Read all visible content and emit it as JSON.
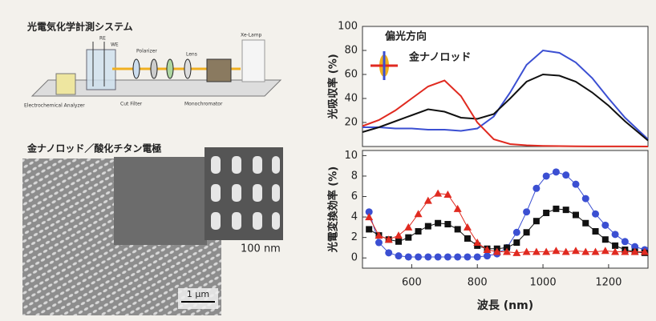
{
  "diagram": {
    "title": "光電気化学計測システム",
    "labels": {
      "re": "RE",
      "we": "WE",
      "polarizer": "Polarizer",
      "lens": "Lens",
      "lamp": "Xe-Lamp",
      "analyzer": "Electrochemical Analyzer",
      "filter": "Cut Filter",
      "mono": "Monochromator"
    }
  },
  "sem": {
    "title": "金ナノロッド／酸化チタン電極",
    "scale_inset": "100 nm",
    "scale_main": "1 μm"
  },
  "chart_data": [
    {
      "type": "line",
      "ylabel": "光吸収率 (%)",
      "annotations": [
        "偏光方向",
        "金ナノロッド"
      ],
      "xlim": [
        450,
        1320
      ],
      "ylim": [
        0,
        100
      ],
      "yticks": [
        20,
        40,
        60,
        80,
        100
      ],
      "x": [
        450,
        500,
        550,
        600,
        650,
        700,
        750,
        800,
        850,
        900,
        950,
        1000,
        1050,
        1100,
        1150,
        1200,
        1250,
        1320
      ],
      "series": [
        {
          "name": "blue",
          "color": "#3b4fd2",
          "values": [
            16,
            16,
            15,
            15,
            14,
            14,
            13,
            15,
            25,
            45,
            68,
            80,
            78,
            70,
            57,
            40,
            24,
            6
          ]
        },
        {
          "name": "black",
          "color": "#111111",
          "values": [
            12,
            16,
            21,
            26,
            31,
            29,
            24,
            23,
            27,
            40,
            54,
            60,
            59,
            54,
            45,
            34,
            21,
            5
          ]
        },
        {
          "name": "red",
          "color": "#e02a20",
          "values": [
            17,
            22,
            30,
            40,
            50,
            55,
            42,
            20,
            6,
            2,
            1,
            0.5,
            0.3,
            0.2,
            0.1,
            0.1,
            0.1,
            0
          ]
        }
      ]
    },
    {
      "type": "scatter",
      "ylabel": "光電変換効率 (%)",
      "xlabel": "波長 (nm)",
      "xlim": [
        450,
        1320
      ],
      "ylim": [
        -1,
        10.5
      ],
      "xticks": [
        600,
        800,
        1000,
        1200
      ],
      "yticks": [
        0,
        2,
        4,
        6,
        8,
        10
      ],
      "x": [
        470,
        500,
        530,
        560,
        590,
        620,
        650,
        680,
        710,
        740,
        770,
        800,
        830,
        860,
        890,
        920,
        950,
        980,
        1010,
        1040,
        1070,
        1100,
        1130,
        1160,
        1190,
        1220,
        1250,
        1280,
        1310
      ],
      "series": [
        {
          "name": "blue",
          "color": "#3b4fd2",
          "marker": "circle",
          "values": [
            4.5,
            1.5,
            0.5,
            0.2,
            0.1,
            0.1,
            0.1,
            0.1,
            0.1,
            0.1,
            0.1,
            0.1,
            0.2,
            0.4,
            1.0,
            2.5,
            4.5,
            6.8,
            8.0,
            8.4,
            8.1,
            7.2,
            5.8,
            4.3,
            3.2,
            2.3,
            1.6,
            1.1,
            0.8
          ]
        },
        {
          "name": "black",
          "color": "#111111",
          "marker": "square",
          "values": [
            2.8,
            2.2,
            1.8,
            1.6,
            2.0,
            2.6,
            3.1,
            3.4,
            3.3,
            2.8,
            1.9,
            1.2,
            0.9,
            0.9,
            1.0,
            1.5,
            2.5,
            3.6,
            4.4,
            4.8,
            4.7,
            4.2,
            3.4,
            2.6,
            1.8,
            1.2,
            0.8,
            0.6,
            0.5
          ]
        },
        {
          "name": "red",
          "color": "#e02a20",
          "marker": "triangle",
          "values": [
            4.0,
            2.2,
            1.8,
            2.2,
            3.0,
            4.3,
            5.6,
            6.3,
            6.2,
            4.8,
            3.0,
            1.5,
            0.8,
            0.6,
            0.6,
            0.5,
            0.6,
            0.6,
            0.6,
            0.7,
            0.6,
            0.7,
            0.6,
            0.6,
            0.7,
            0.6,
            0.6,
            0.6,
            0.6
          ]
        }
      ]
    }
  ]
}
